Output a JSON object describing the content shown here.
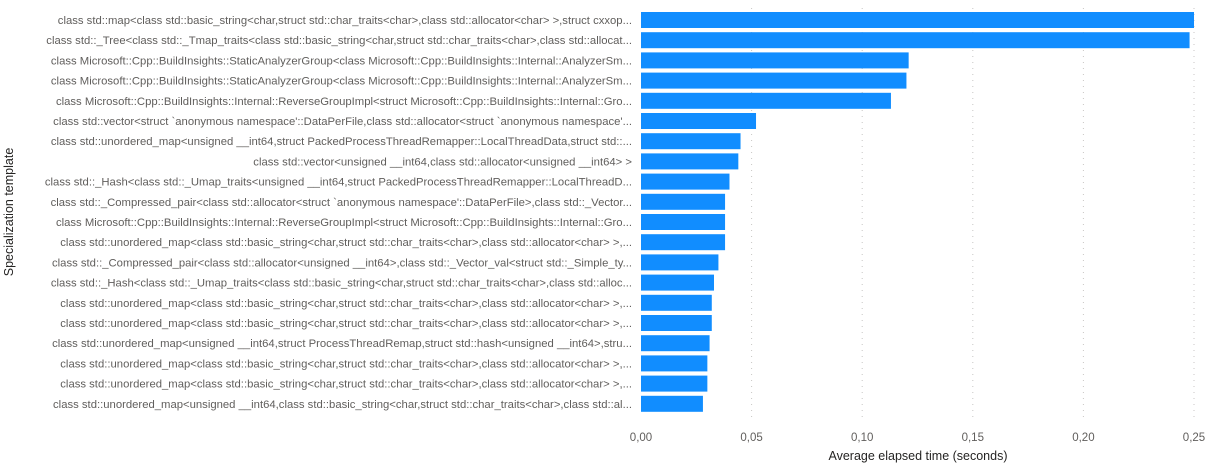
{
  "chart_data": {
    "type": "bar",
    "orientation": "horizontal",
    "title": "",
    "xlabel": "Average elapsed time (seconds)",
    "ylabel": "Specialization template",
    "xlim": [
      0,
      0.25
    ],
    "xticks": [
      "0,00",
      "0,05",
      "0,10",
      "0,15",
      "0,20",
      "0,25"
    ],
    "grid": true,
    "bar_color": "#118DFF",
    "categories": [
      "class std::map<class std::basic_string<char,struct std::char_traits<char>,class std::allocator<char> >,struct cxxop...",
      "class std::_Tree<class std::_Tmap_traits<class std::basic_string<char,struct std::char_traits<char>,class std::allocat...",
      "class Microsoft::Cpp::BuildInsights::StaticAnalyzerGroup<class Microsoft::Cpp::BuildInsights::Internal::AnalyzerSm...",
      "class Microsoft::Cpp::BuildInsights::StaticAnalyzerGroup<class Microsoft::Cpp::BuildInsights::Internal::AnalyzerSm...",
      "class Microsoft::Cpp::BuildInsights::Internal::ReverseGroupImpl<struct Microsoft::Cpp::BuildInsights::Internal::Gro...",
      "class std::vector<struct `anonymous namespace'::DataPerFile,class std::allocator<struct `anonymous namespace'...",
      "class std::unordered_map<unsigned __int64,struct PackedProcessThreadRemapper::LocalThreadData,struct std::...",
      "class std::vector<unsigned __int64,class std::allocator<unsigned __int64> >",
      "class std::_Hash<class std::_Umap_traits<unsigned __int64,struct PackedProcessThreadRemapper::LocalThreadD...",
      "class std::_Compressed_pair<class std::allocator<struct `anonymous namespace'::DataPerFile>,class std::_Vector...",
      "class Microsoft::Cpp::BuildInsights::Internal::ReverseGroupImpl<struct Microsoft::Cpp::BuildInsights::Internal::Gro...",
      "class std::unordered_map<class std::basic_string<char,struct std::char_traits<char>,class std::allocator<char> >,...",
      "class std::_Compressed_pair<class std::allocator<unsigned __int64>,class std::_Vector_val<struct std::_Simple_ty...",
      "class std::_Hash<class std::_Umap_traits<class std::basic_string<char,struct std::char_traits<char>,class std::alloc...",
      "class std::unordered_map<class std::basic_string<char,struct std::char_traits<char>,class std::allocator<char> >,...",
      "class std::unordered_map<class std::basic_string<char,struct std::char_traits<char>,class std::allocator<char> >,...",
      "class std::unordered_map<unsigned __int64,struct ProcessThreadRemap,struct std::hash<unsigned __int64>,stru...",
      "class std::unordered_map<class std::basic_string<char,struct std::char_traits<char>,class std::allocator<char> >,...",
      "class std::unordered_map<class std::basic_string<char,struct std::char_traits<char>,class std::allocator<char> >,...",
      "class std::unordered_map<unsigned __int64,class std::basic_string<char,struct std::char_traits<char>,class std::al..."
    ],
    "values": [
      0.25,
      0.248,
      0.121,
      0.12,
      0.113,
      0.052,
      0.045,
      0.044,
      0.04,
      0.038,
      0.038,
      0.038,
      0.035,
      0.033,
      0.032,
      0.032,
      0.031,
      0.03,
      0.03,
      0.028
    ]
  }
}
